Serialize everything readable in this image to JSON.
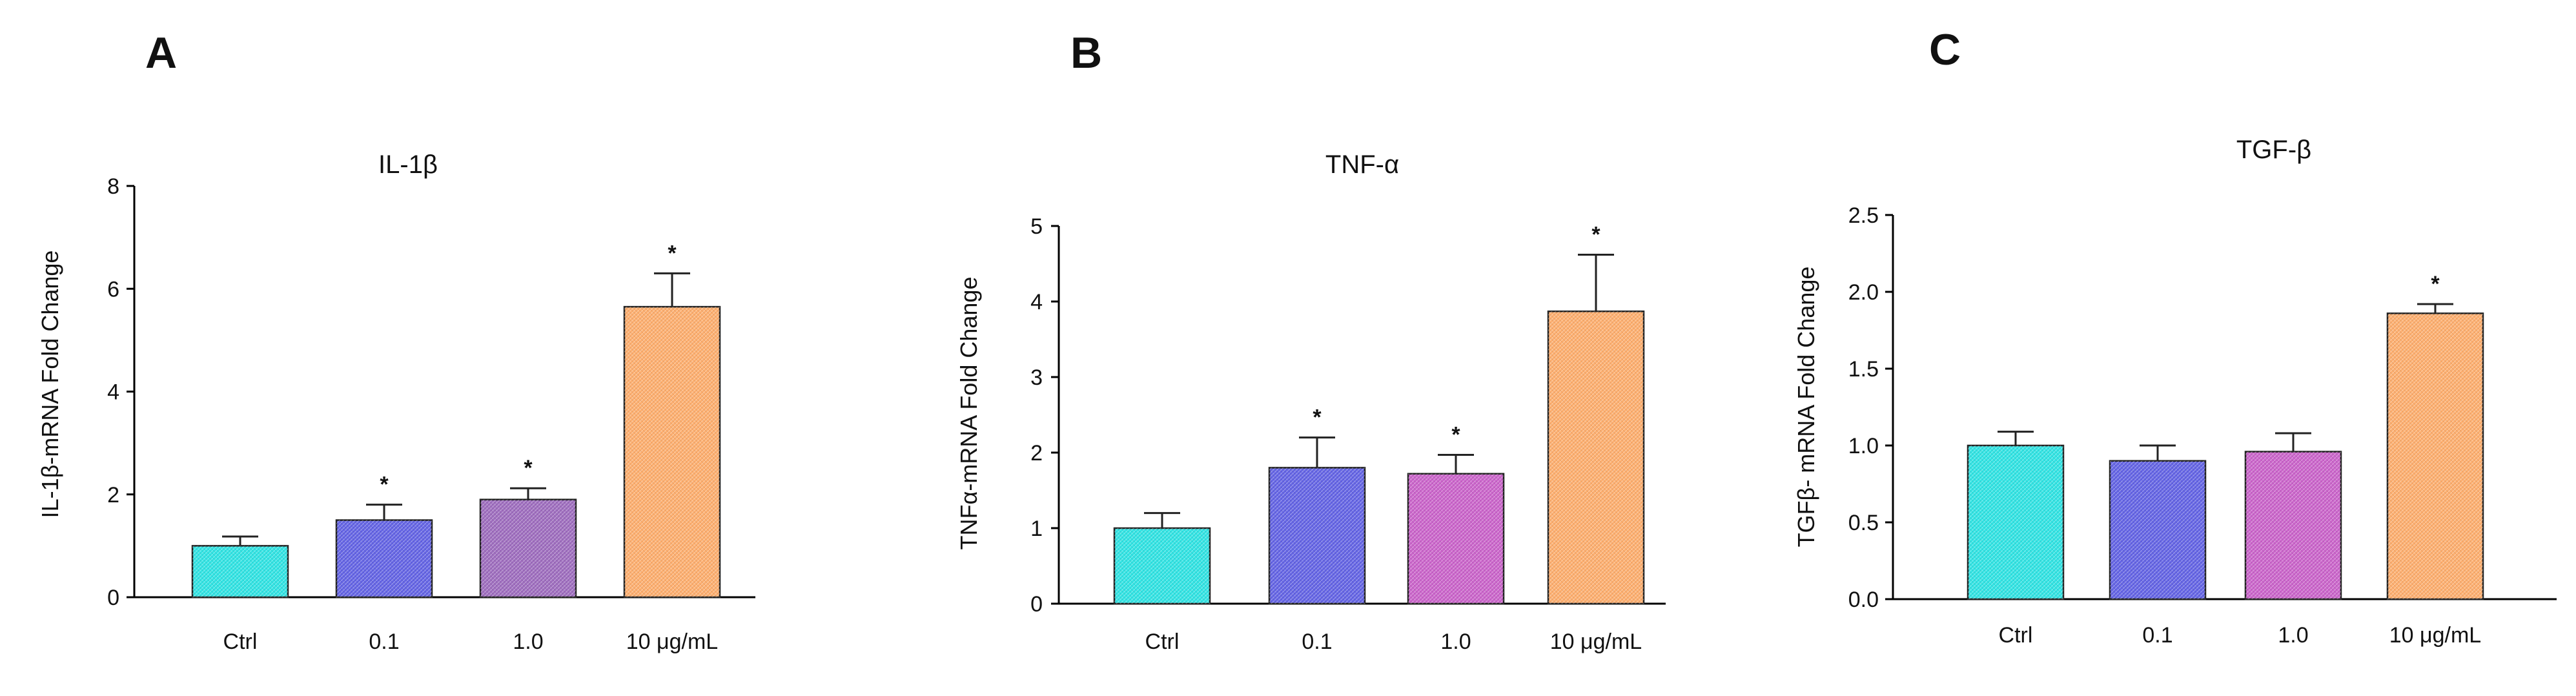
{
  "panels": [
    {
      "letter": "A",
      "chart_data": {
        "type": "bar",
        "title": "IL-1β",
        "xlabel": "",
        "ylabel": "IL-1β-mRNA Fold Change",
        "categories": [
          "Ctrl",
          "0.1",
          "1.0",
          "10 μg/mL"
        ],
        "values": [
          1.0,
          1.5,
          1.9,
          5.65
        ],
        "errors": [
          0.18,
          0.3,
          0.22,
          0.65
        ],
        "significance": [
          "",
          "*",
          "*",
          "*"
        ],
        "ylim": [
          0,
          8
        ],
        "yticks": [
          "0",
          "2",
          "4",
          "6",
          "8"
        ],
        "ytick_values": [
          0,
          2,
          4,
          6,
          8
        ],
        "colors": [
          "#33e5e5",
          "#6666e6",
          "#a06fc0",
          "#ffb070"
        ]
      }
    },
    {
      "letter": "B",
      "chart_data": {
        "type": "bar",
        "title": "TNF-α",
        "xlabel": "",
        "ylabel": "TNFα-mRNA Fold Change",
        "categories": [
          "Ctrl",
          "0.1",
          "1.0",
          "10 μg/mL"
        ],
        "values": [
          1.0,
          1.8,
          1.72,
          3.87
        ],
        "errors": [
          0.2,
          0.4,
          0.25,
          0.75
        ],
        "significance": [
          "",
          "*",
          "*",
          "*"
        ],
        "ylim": [
          0,
          5
        ],
        "yticks": [
          "0",
          "1",
          "2",
          "3",
          "4",
          "5"
        ],
        "ytick_values": [
          0,
          1,
          2,
          3,
          4,
          5
        ],
        "colors": [
          "#33e5e5",
          "#6666e6",
          "#cc66cc",
          "#ffb070"
        ]
      }
    },
    {
      "letter": "C",
      "chart_data": {
        "type": "bar",
        "title": "TGF-β",
        "xlabel": "",
        "ylabel": "TGFβ- mRNA Fold Change",
        "categories": [
          "Ctrl",
          "0.1",
          "1.0",
          "10 μg/mL"
        ],
        "values": [
          1.0,
          0.9,
          0.96,
          1.86
        ],
        "errors": [
          0.09,
          0.1,
          0.12,
          0.06
        ],
        "significance": [
          "",
          "",
          "",
          "*"
        ],
        "ylim": [
          0,
          2.5
        ],
        "yticks": [
          "0.0",
          "0.5",
          "1.0",
          "1.5",
          "2.0",
          "2.5"
        ],
        "ytick_values": [
          0,
          0.5,
          1.0,
          1.5,
          2.0,
          2.5
        ],
        "colors": [
          "#33e5e5",
          "#6666e6",
          "#cc66cc",
          "#ffb070"
        ]
      }
    }
  ]
}
